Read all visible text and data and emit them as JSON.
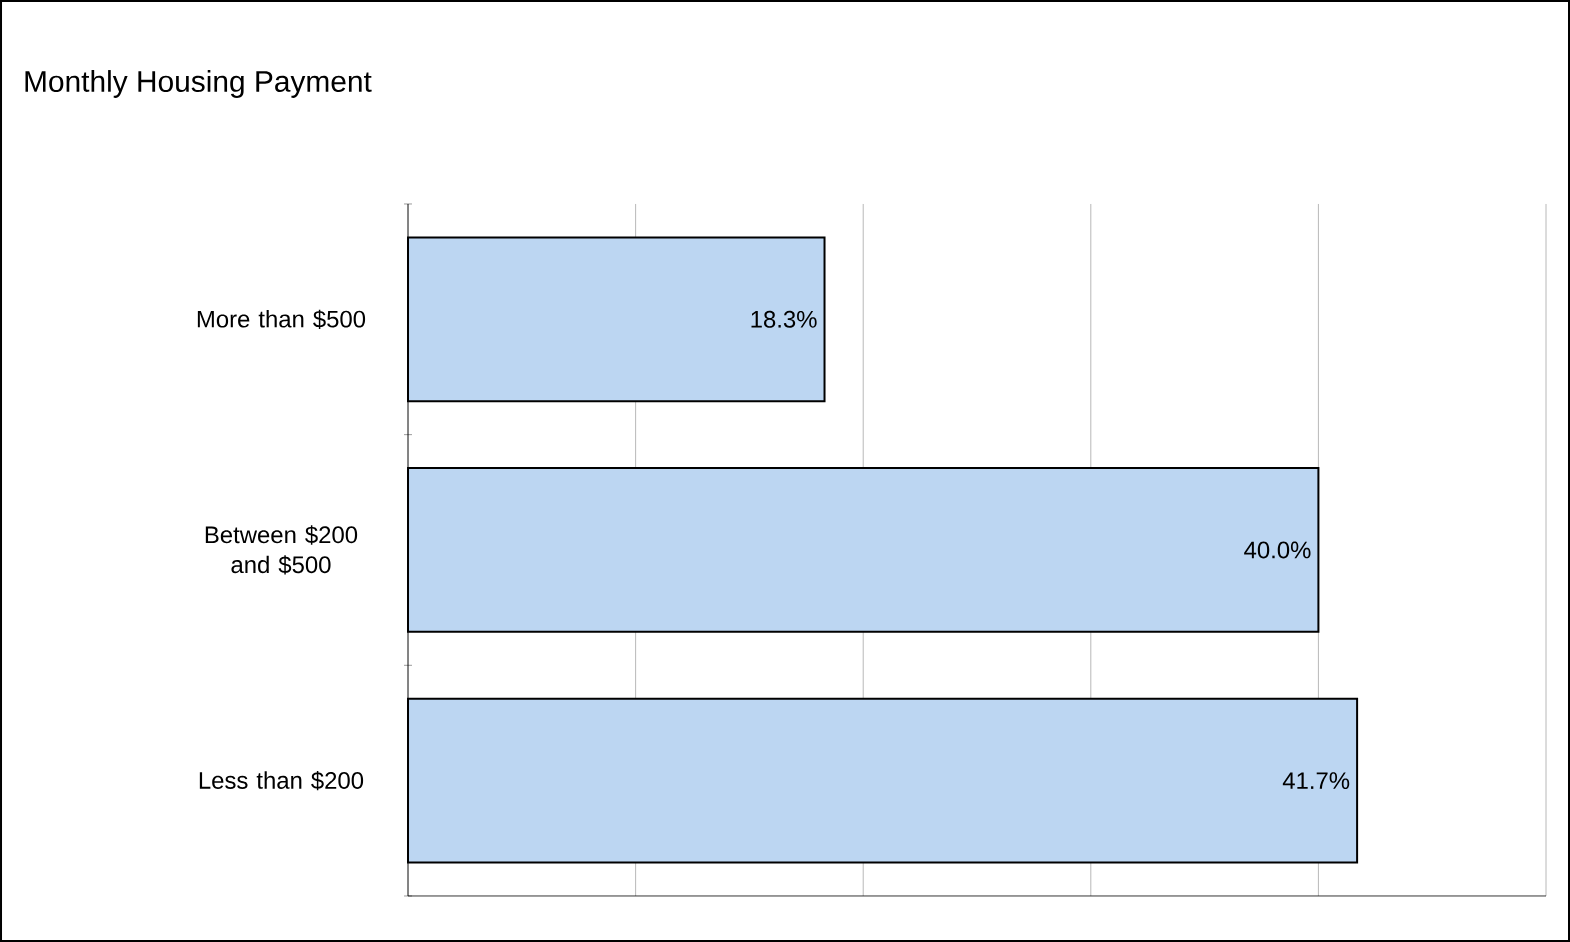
{
  "chart_data": {
    "type": "bar",
    "orientation": "horizontal",
    "title": "Monthly Housing Payment",
    "categories": [
      "More than $500",
      "Between $200 and $500",
      "Less than $200"
    ],
    "values": [
      18.3,
      40.0,
      41.7
    ],
    "value_labels": [
      "18.3%",
      "40.0%",
      "41.7%"
    ],
    "color": "#bcd6f2",
    "xlim": [
      0,
      50
    ],
    "xticks": [
      {
        "value": 0,
        "label": null
      },
      {
        "value": 10,
        "label": null
      },
      {
        "value": 20,
        "label": null
      },
      {
        "value": 30,
        "label": null
      },
      {
        "value": 40,
        "label": null
      },
      {
        "value": 50,
        "label": null
      }
    ],
    "tick_labels": "y",
    "grid": "x"
  }
}
